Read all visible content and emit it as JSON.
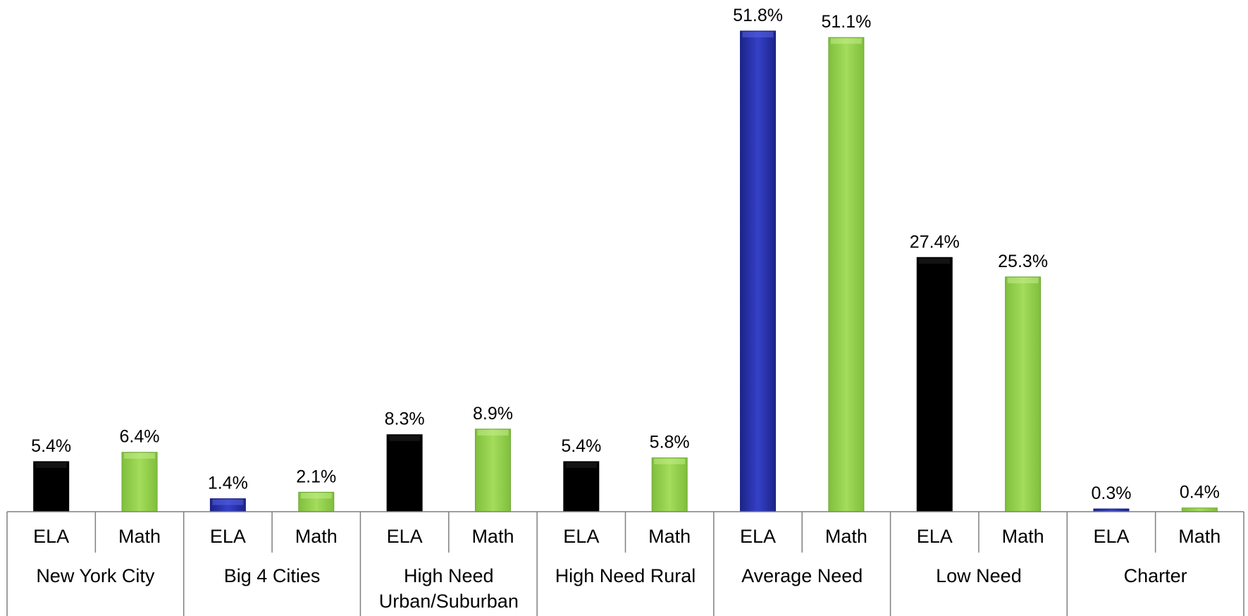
{
  "chart_data": {
    "type": "bar",
    "groups": [
      "New York City",
      "Big 4 Cities",
      "High Need Urban/Suburban",
      "High Need Rural",
      "Average Need",
      "Low Need",
      "Charter"
    ],
    "subjects": [
      "ELA",
      "Math"
    ],
    "series": [
      {
        "name": "ELA",
        "values": [
          5.4,
          1.4,
          8.3,
          5.4,
          51.8,
          27.4,
          0.3
        ]
      },
      {
        "name": "Math",
        "values": [
          6.4,
          2.1,
          8.9,
          5.8,
          51.1,
          25.3,
          0.4
        ]
      }
    ],
    "data_labels": {
      "ELA": [
        "5.4%",
        "1.4%",
        "8.3%",
        "5.4%",
        "51.8%",
        "27.4%",
        "0.3%"
      ],
      "Math": [
        "6.4%",
        "2.1%",
        "8.9%",
        "5.8%",
        "51.1%",
        "25.3%",
        "0.4%"
      ]
    },
    "group_label_lines": [
      [
        "New York City"
      ],
      [
        "Big 4 Cities"
      ],
      [
        "High Need",
        "Urban/Suburban"
      ],
      [
        "High Need Rural"
      ],
      [
        "Average Need"
      ],
      [
        "Low Need"
      ],
      [
        "Charter"
      ]
    ],
    "ylim": [
      0,
      51.8
    ],
    "gridlines": false,
    "legend": "none",
    "colors": {
      "ela_bar": "#2e37b5",
      "ela_bar_dark": "#000000",
      "math_bar": "#95d14f",
      "axis": "#7f7f7f"
    }
  }
}
